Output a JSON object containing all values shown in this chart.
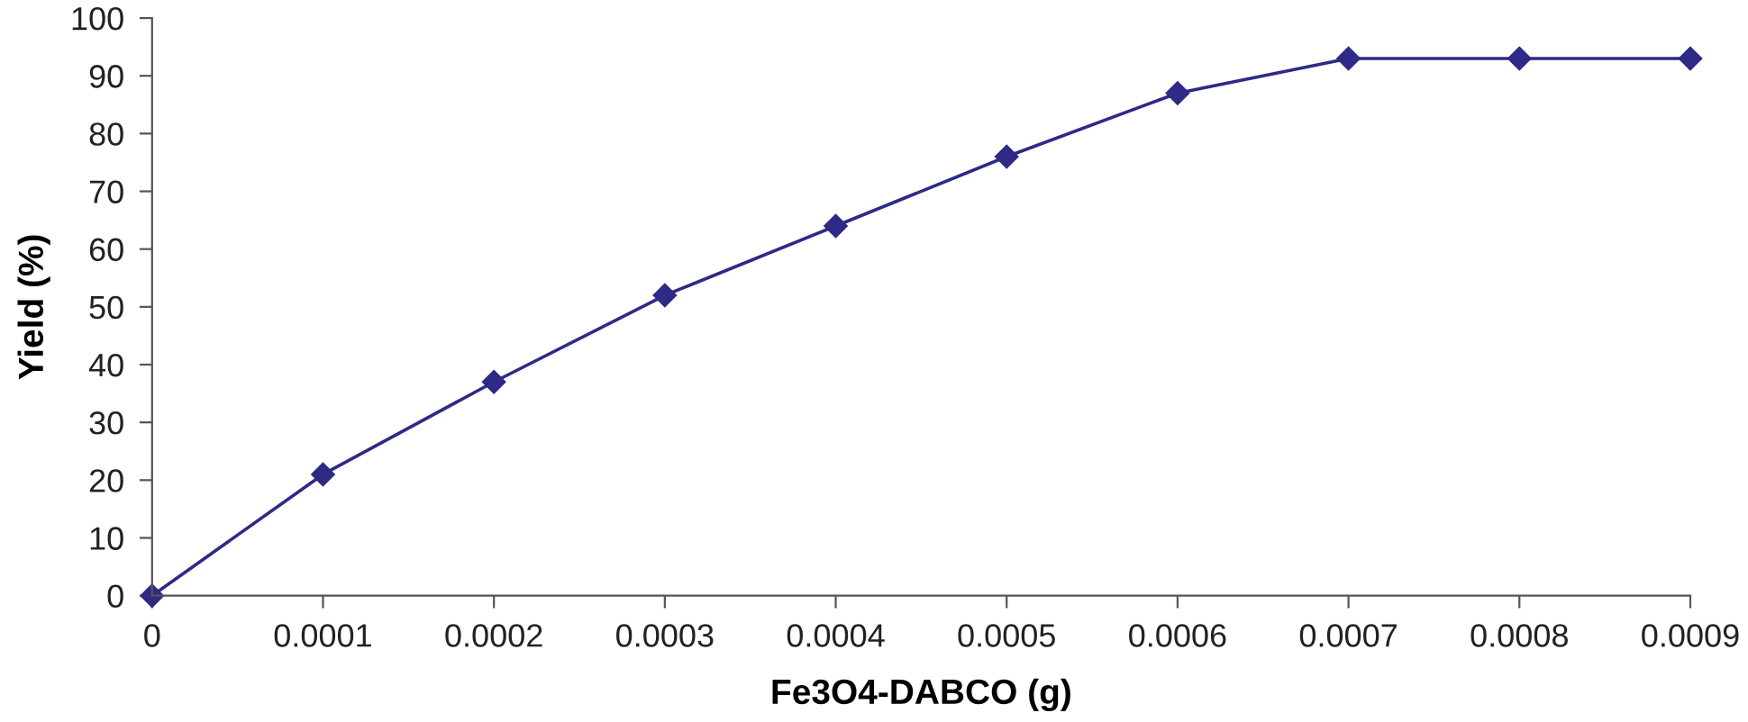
{
  "chart_data": {
    "type": "line",
    "xlabel": "Fe3O4-DABCO (g)",
    "ylabel": "Yield (%)",
    "x": [
      0,
      0.0001,
      0.0002,
      0.0003,
      0.0004,
      0.0005,
      0.0006,
      0.0007,
      0.0008,
      0.0009
    ],
    "series": [
      {
        "color": "#2e2a86",
        "values": [
          0,
          21,
          37,
          52,
          64,
          76,
          87,
          93,
          93,
          93
        ]
      }
    ],
    "xlim": [
      0,
      0.0009
    ],
    "xticks": [
      0,
      0.0001,
      0.0002,
      0.0003,
      0.0004,
      0.0005,
      0.0006,
      0.0007,
      0.0008,
      0.0009
    ],
    "ylim": [
      0,
      100
    ],
    "yticks": [
      0,
      10,
      20,
      30,
      40,
      50,
      60,
      70,
      80,
      90,
      100
    ],
    "grid": false,
    "marker": "diamond",
    "line_style": "solid"
  }
}
